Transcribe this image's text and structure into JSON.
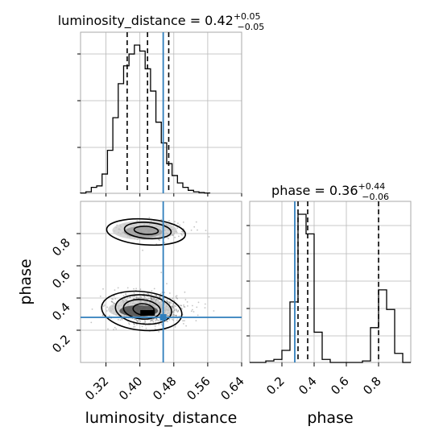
{
  "chart_data": {
    "type": "corner",
    "parameters": [
      "luminosity_distance",
      "phase"
    ],
    "titles": [
      {
        "text": "luminosity_distance = 0.42",
        "plus": "+0.05",
        "minus": "−0.05"
      },
      {
        "text": "phase = 0.36",
        "plus": "+0.44",
        "minus": "−0.06"
      }
    ],
    "xlabels": [
      "luminosity_distance",
      "phase"
    ],
    "ylabel": "phase",
    "ranges": {
      "luminosity_distance": [
        0.26,
        0.64
      ],
      "phase": [
        0.0,
        1.0
      ]
    },
    "ticks": {
      "luminosity_distance": [
        "0.32",
        "0.40",
        "0.48",
        "0.56",
        "0.64"
      ],
      "phase_x": [
        "0.2",
        "0.4",
        "0.6",
        "0.8"
      ],
      "phase_y": [
        "0.2",
        "0.4",
        "0.6",
        "0.8"
      ]
    },
    "injection": {
      "luminosity_distance": 0.455,
      "phase": 0.28
    },
    "quantiles": {
      "luminosity_distance": [
        0.37,
        0.418,
        0.468
      ],
      "phase": [
        0.3,
        0.36,
        0.8
      ]
    },
    "hist_luminosity_distance": {
      "edges_start": 0.26,
      "bin_width": 0.0127,
      "counts": [
        0.002,
        0.01,
        0.04,
        0.05,
        0.13,
        0.29,
        0.51,
        0.74,
        0.86,
        0.94,
        1.0,
        0.96,
        0.84,
        0.69,
        0.48,
        0.34,
        0.2,
        0.12,
        0.07,
        0.04,
        0.02,
        0.01,
        0.005,
        0.002
      ]
    },
    "hist_phase": {
      "edges_start": 0.0,
      "bin_width": 0.05,
      "counts": [
        0.0,
        0.0,
        0.01,
        0.02,
        0.08,
        0.4,
        0.98,
        0.85,
        0.2,
        0.02,
        0.0,
        0.0,
        0.0,
        0.0,
        0.01,
        0.23,
        0.48,
        0.35,
        0.06,
        0.0
      ]
    },
    "modes": [
      {
        "luminosity_distance": 0.42,
        "phase": 0.33,
        "sd_x": 0.038,
        "sd_y": 0.04,
        "weight": 0.75
      },
      {
        "luminosity_distance": 0.43,
        "phase": 0.82,
        "sd_x": 0.034,
        "sd_y": 0.028,
        "weight": 0.25
      }
    ],
    "grid": true,
    "colors": {
      "hist": "#000000",
      "injection": "#2f7ebc",
      "points": "#555555",
      "grid": "#b8b8b8",
      "frame": "#aaaaaa"
    }
  }
}
